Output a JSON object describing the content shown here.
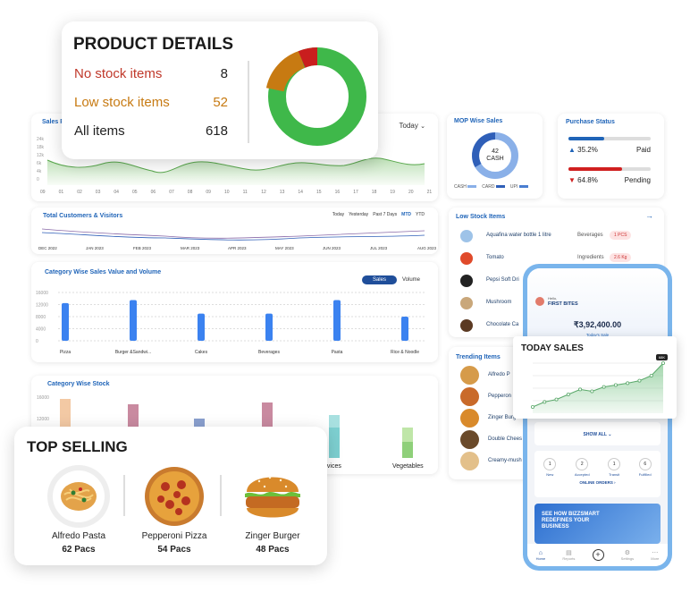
{
  "product_details": {
    "title": "PRODUCT DETAILS",
    "rows": [
      {
        "label": "No stock items",
        "value": "8",
        "color": "#c0392b"
      },
      {
        "label": "Low stock items",
        "value": "52",
        "color": "#c77a12"
      },
      {
        "label": "All items",
        "value": "618",
        "color": "#222222"
      }
    ]
  },
  "sales_panel": {
    "title": "Sales Pe",
    "period": "Today",
    "xlabels": [
      "09",
      "01",
      "02",
      "03",
      "04",
      "05",
      "06",
      "07",
      "08",
      "09",
      "10",
      "11",
      "12",
      "13",
      "14",
      "15",
      "16",
      "17",
      "18",
      "19",
      "20",
      "21"
    ],
    "ylabels": [
      "24k",
      "18k",
      "12k",
      "6k",
      "4k",
      "0"
    ]
  },
  "mop": {
    "title": "MOP Wise Sales",
    "center_value": "42",
    "center_label": "CASH",
    "legend": [
      "CASH",
      "CARD",
      "UPI"
    ]
  },
  "purchase": {
    "title": "Purchase Status",
    "paid_pct": "35.2%",
    "paid_label": "Paid",
    "pending_pct": "64.8%",
    "pending_label": "Pending"
  },
  "customers": {
    "title": "Total Customers & Visitors",
    "tabs": [
      "Today",
      "Yesterday",
      "Past 7 Days",
      "MTD",
      "YTD"
    ],
    "active_tab": "MTD",
    "months": [
      "DEC 2022",
      "JAN 2023",
      "FEB 2023",
      "MAR 2023",
      "APR 2023",
      "MAY 2023",
      "JUN 2023",
      "JUL 2023",
      "AUG 2023"
    ]
  },
  "low_stock": {
    "title": "Low Stock Items",
    "items": [
      {
        "name": "Aquafina water bottle 1 litre",
        "category": "Beverages",
        "qty": "1 PCS"
      },
      {
        "name": "Tomato",
        "category": "Ingredients",
        "qty": "2.6 Kg"
      },
      {
        "name": "Pepsi Soft Dri",
        "category": "",
        "qty": ""
      },
      {
        "name": "Mushroom",
        "category": "",
        "qty": ""
      },
      {
        "name": "Chocolate Ca",
        "category": "",
        "qty": ""
      }
    ]
  },
  "category_sales": {
    "title": "Category Wise Sales Value and Volume",
    "toggle": [
      "Sales",
      "Volume"
    ],
    "categories": [
      "Pizza",
      "Burger &Sandwi...",
      "Cakes",
      "Beverages",
      "Pasta",
      "Rice & Noodle"
    ],
    "values": [
      12500,
      13500,
      9000,
      9000,
      13500,
      8000
    ],
    "yticks": [
      "16000",
      "12000",
      "8000",
      "4000",
      "0"
    ]
  },
  "category_stock": {
    "title": "Category Wise Stock",
    "yticks": [
      "16000",
      "12000"
    ],
    "visible_labels": [
      "Services",
      "Vegetables"
    ]
  },
  "trending": {
    "title": "Trending Items",
    "items": [
      "Alfredo P",
      "Pepperon",
      "Zinger Burger",
      "Double Chees",
      "Creamy-mush"
    ]
  },
  "top_selling": {
    "title": "TOP SELLING",
    "items": [
      {
        "name": "Alfredo Pasta",
        "qty": "62 Pacs"
      },
      {
        "name": "Pepperoni Pizza",
        "qty": "54 Pacs"
      },
      {
        "name": "Zinger Burger",
        "qty": "48 Pacs"
      }
    ]
  },
  "phone": {
    "greeting": "Hello,",
    "store": "FIRST BITES",
    "amount": "₹3,92,400.00",
    "amount_label": "Today's Sale",
    "show_all": "SHOW ALL",
    "orders": [
      {
        "n": "1",
        "label": "New"
      },
      {
        "n": "2",
        "label": "Accepted"
      },
      {
        "n": "1",
        "label": "Transit"
      },
      {
        "n": "6",
        "label": "Fulfilled"
      }
    ],
    "online_orders": "ONLINE ORDERS",
    "banner": "SEE HOW BIZZSMART REDEFINES YOUR BUSINESS",
    "nav": [
      "Home",
      "Reports",
      "",
      "Settings",
      "More"
    ]
  },
  "today_sales": {
    "title": "TODAY SALES",
    "badge": "68K",
    "values": [
      10,
      18,
      22,
      30,
      38,
      35,
      42,
      45,
      48,
      52,
      60,
      80
    ]
  }
}
